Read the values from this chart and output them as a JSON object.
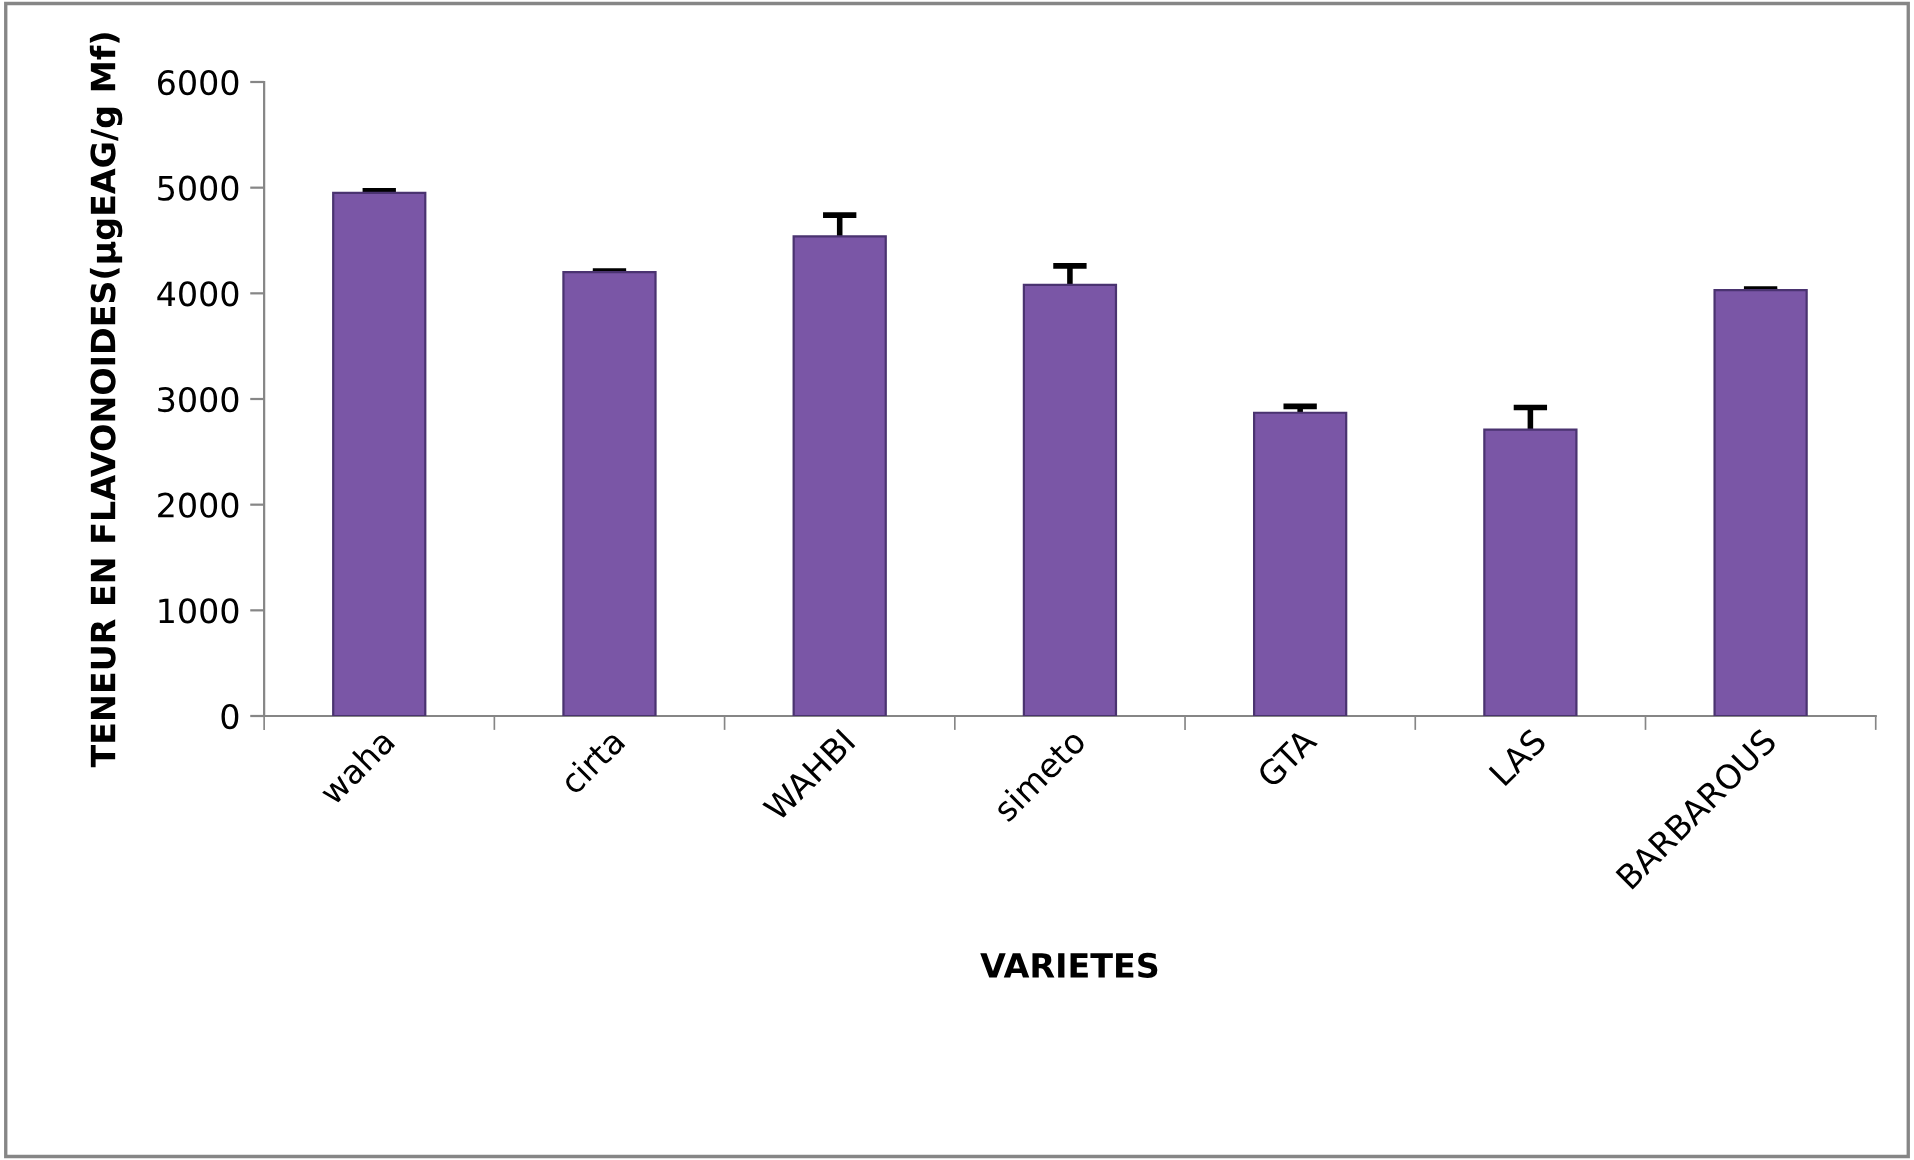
{
  "chart_data": {
    "type": "bar",
    "xlabel": "VARIETES",
    "ylabel": "TENEUR EN FLAVONOIDES(µgEAG/g Mf)",
    "categories": [
      "waha",
      "cirta",
      "WAHBI",
      "simeto",
      "GTA",
      "LAS",
      "BARBAROUS"
    ],
    "values": [
      4950,
      4200,
      4540,
      4080,
      2870,
      2710,
      4030
    ],
    "errors": [
      20,
      10,
      200,
      180,
      60,
      210,
      10
    ],
    "color": "#7a56a6",
    "ylim": [
      0,
      6000
    ],
    "yticks": [
      0,
      1000,
      2000,
      3000,
      4000,
      5000,
      6000
    ],
    "grid": false,
    "legend": false
  }
}
